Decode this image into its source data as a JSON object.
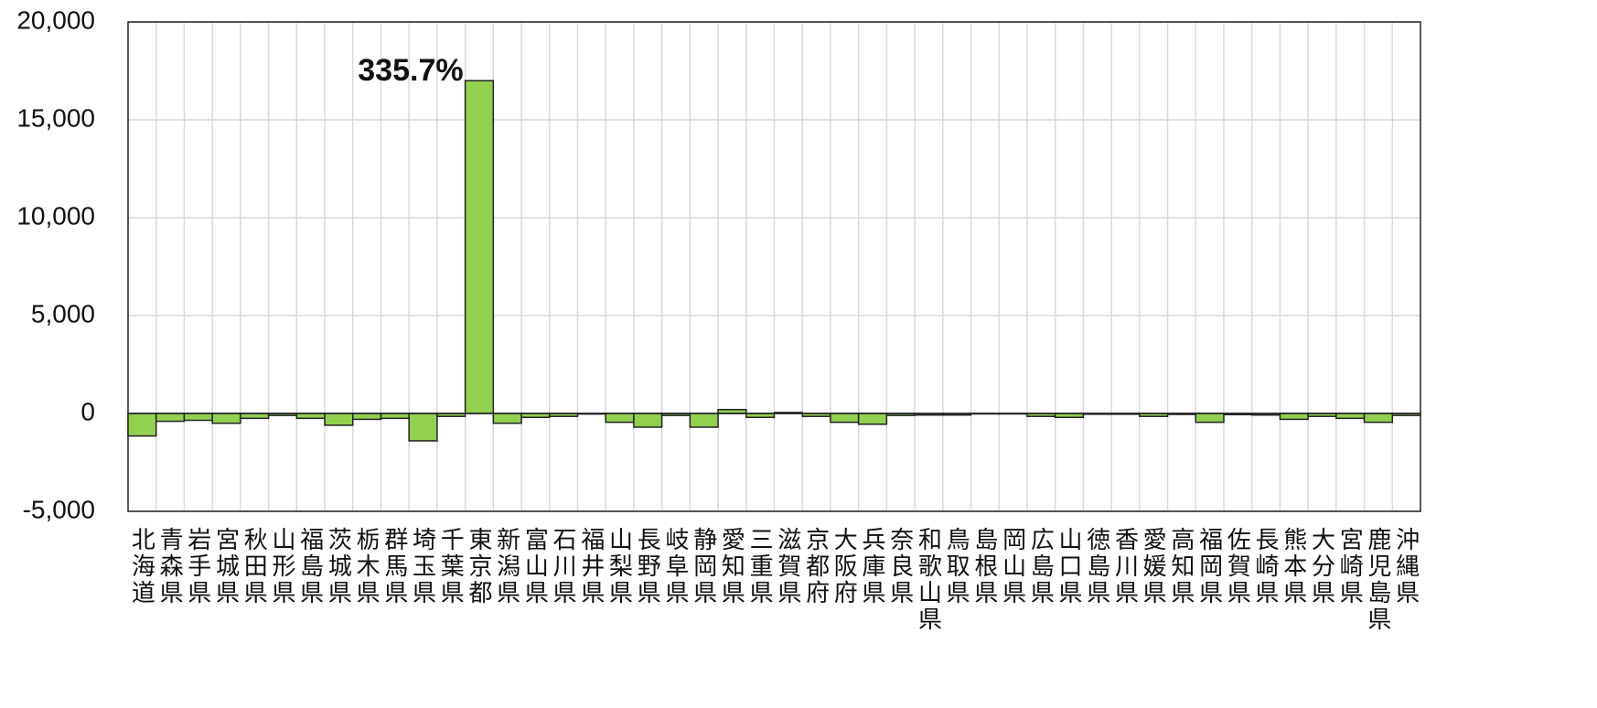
{
  "chart_data": {
    "type": "bar",
    "categories": [
      "北海道",
      "青森県",
      "岩手県",
      "宮城県",
      "秋田県",
      "山形県",
      "福島県",
      "茨城県",
      "栃木県",
      "群馬県",
      "埼玉県",
      "千葉県",
      "東京都",
      "新潟県",
      "富山県",
      "石川県",
      "福井県",
      "山梨県",
      "長野県",
      "岐阜県",
      "静岡県",
      "愛知県",
      "三重県",
      "滋賀県",
      "京都府",
      "大阪府",
      "兵庫県",
      "奈良県",
      "和歌山県",
      "鳥取県",
      "島根県",
      "岡山県",
      "広島県",
      "山口県",
      "徳島県",
      "香川県",
      "愛媛県",
      "高知県",
      "福岡県",
      "佐賀県",
      "長崎県",
      "熊本県",
      "大分県",
      "宮崎県",
      "鹿児島県",
      "沖縄県"
    ],
    "values": [
      -1150,
      -400,
      -350,
      -500,
      -250,
      -100,
      -250,
      -600,
      -300,
      -250,
      -1400,
      -150,
      17000,
      -500,
      -200,
      -150,
      -30,
      -450,
      -700,
      -100,
      -700,
      200,
      -200,
      50,
      -150,
      -450,
      -550,
      -100,
      -80,
      -80,
      -20,
      -20,
      -150,
      -200,
      -40,
      -40,
      -150,
      -50,
      -450,
      -60,
      -80,
      -300,
      -150,
      -250,
      -450,
      -100
    ],
    "color": "#92d050",
    "ylim": [
      -5000,
      20000
    ],
    "yticks": [
      {
        "value": -5000,
        "label": "-5,000"
      },
      0,
      {
        "value": 5000,
        "label": "5,000"
      },
      {
        "value": 10000,
        "label": "10,000"
      },
      {
        "value": 15000,
        "label": "15,000"
      },
      {
        "value": 20000,
        "label": "20,000"
      }
    ],
    "grid": true,
    "annotations": [
      {
        "text": "335.7%"
      }
    ]
  }
}
